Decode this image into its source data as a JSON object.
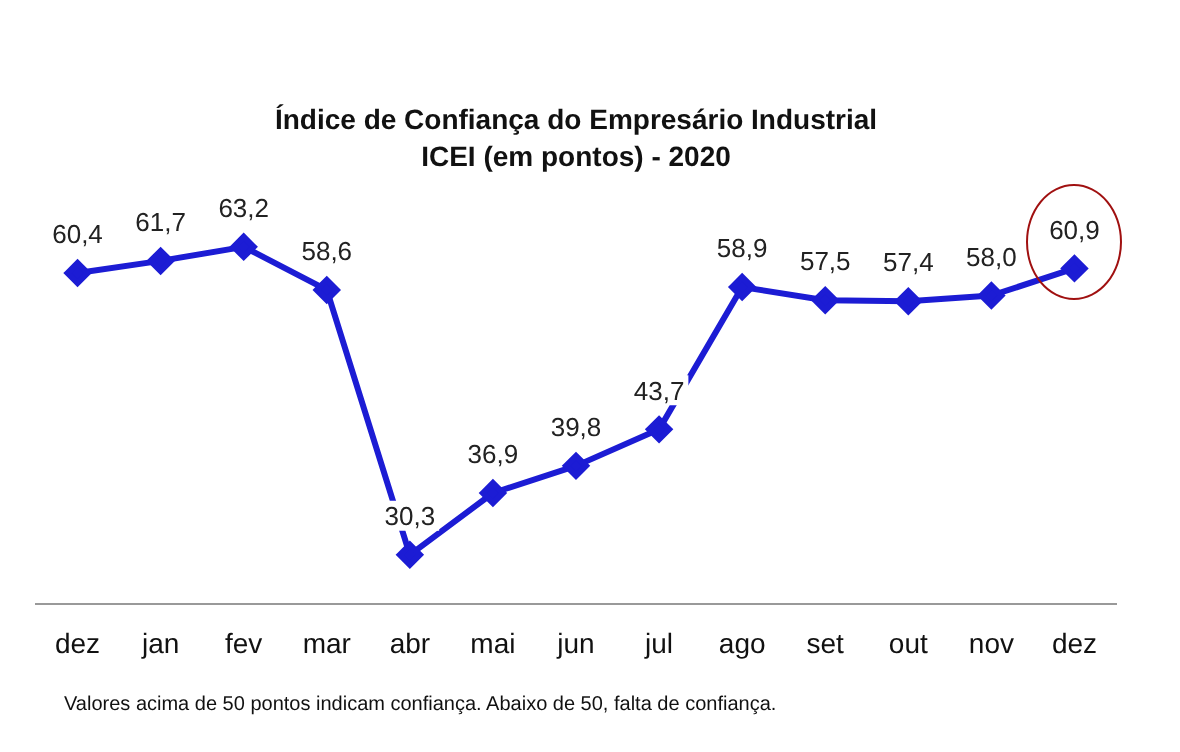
{
  "chart_data": {
    "type": "line",
    "title": "Índice de Confiança do Empresário Industrial",
    "subtitle": "ICEI (em pontos) - 2020",
    "categories": [
      "dez",
      "jan",
      "fev",
      "mar",
      "abr",
      "mai",
      "jun",
      "jul",
      "ago",
      "set",
      "out",
      "nov",
      "dez"
    ],
    "series": [
      {
        "color": "#1c1cd4",
        "values": [
          60.4,
          61.7,
          63.2,
          58.6,
          30.3,
          36.9,
          39.8,
          43.7,
          58.9,
          57.5,
          57.4,
          58.0,
          60.9
        ],
        "value_labels": [
          "60,4",
          "61,7",
          "63,2",
          "58,6",
          "30,3",
          "36,9",
          "39,8",
          "43,7",
          "58,9",
          "57,5",
          "57,4",
          "58,0",
          "60,9"
        ]
      }
    ],
    "marker": "diamond",
    "tick_labels": "x",
    "grid": false,
    "legend": false,
    "annotations": [
      "Valores acima de 50 pontos indicam confiança. Abaixo de 50, falta de confiança."
    ]
  }
}
